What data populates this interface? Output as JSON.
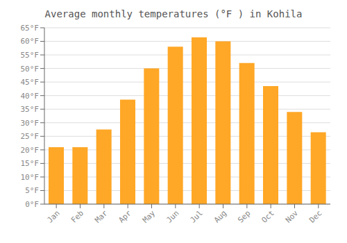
{
  "chart_data": {
    "type": "bar",
    "title": "Average monthly temperatures (°F ) in Kohila",
    "categories": [
      "Jan",
      "Feb",
      "Mar",
      "Apr",
      "May",
      "Jun",
      "Jul",
      "Aug",
      "Sep",
      "Oct",
      "Nov",
      "Dec"
    ],
    "values": [
      21,
      21,
      27.5,
      38.5,
      50,
      58,
      61.5,
      60,
      52,
      43.5,
      34,
      26.5
    ],
    "color": "#FFA726",
    "ylim": [
      0,
      65
    ],
    "yticks": [
      {
        "value": 0,
        "label": "0°F"
      },
      {
        "value": 5,
        "label": "5°F"
      },
      {
        "value": 10,
        "label": "10°F"
      },
      {
        "value": 15,
        "label": "15°F"
      },
      {
        "value": 20,
        "label": "20°F"
      },
      {
        "value": 25,
        "label": "25°F"
      },
      {
        "value": 30,
        "label": "30°F"
      },
      {
        "value": 35,
        "label": "35°F"
      },
      {
        "value": 40,
        "label": "40°F"
      },
      {
        "value": 45,
        "label": "45°F"
      },
      {
        "value": 50,
        "label": "50°F"
      },
      {
        "value": 55,
        "label": "55°F"
      },
      {
        "value": 60,
        "label": "60°F"
      },
      {
        "value": 65,
        "label": "65°F"
      }
    ],
    "grid": true
  }
}
